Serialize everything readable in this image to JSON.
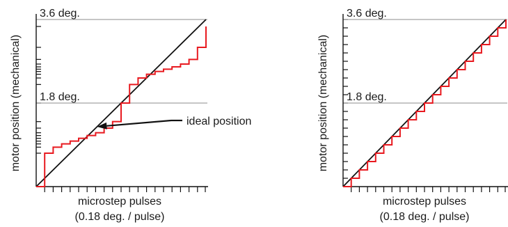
{
  "chart_data": [
    {
      "type": "line",
      "title": "",
      "xlabel": "microstep pulses",
      "xlabel_sub": "(0.18 deg. / pulse)",
      "ylabel": "motor position (mechanical)",
      "ylim_deg": [
        0,
        3.6
      ],
      "reference_lines": [
        {
          "value": 3.6,
          "label": "3.6 deg."
        },
        {
          "value": 1.8,
          "label": "1.8 deg."
        }
      ],
      "series": [
        {
          "role": "ideal",
          "color": "#111111",
          "points": [
            [
              0,
              0
            ],
            [
              20,
              3.6
            ]
          ]
        },
        {
          "role": "actual",
          "color": "#e8191f",
          "step_x": [
            0,
            1,
            2,
            3,
            4,
            5,
            6,
            7,
            8,
            9,
            10,
            11,
            12,
            13,
            14,
            15,
            16,
            17,
            18,
            19,
            20
          ],
          "step_y": [
            0.0,
            0.72,
            0.85,
            0.92,
            0.98,
            1.04,
            1.1,
            1.16,
            1.26,
            1.4,
            1.8,
            2.2,
            2.34,
            2.42,
            2.48,
            2.53,
            2.58,
            2.64,
            2.74,
            3.0,
            3.45
          ]
        }
      ],
      "annotation": {
        "text": "ideal position",
        "target_x": 7.0,
        "target_y": 1.26
      }
    },
    {
      "type": "line",
      "title": "",
      "xlabel": "microstep pulses",
      "xlabel_sub": "(0.18 deg. / pulse)",
      "ylabel": "motor position (mechanical)",
      "ylim_deg": [
        0,
        3.6
      ],
      "reference_lines": [
        {
          "value": 3.6,
          "label": "3.6 deg."
        },
        {
          "value": 1.8,
          "label": "1.8 deg."
        }
      ],
      "series": [
        {
          "role": "ideal",
          "color": "#111111",
          "points": [
            [
              0,
              0
            ],
            [
              20,
              3.6
            ]
          ]
        },
        {
          "role": "actual",
          "color": "#e8191f",
          "step_x": [
            0,
            1,
            2,
            3,
            4,
            5,
            6,
            7,
            8,
            9,
            10,
            11,
            12,
            13,
            14,
            15,
            16,
            17,
            18,
            19,
            20
          ],
          "step_y": [
            0.0,
            0.18,
            0.36,
            0.54,
            0.72,
            0.9,
            1.08,
            1.26,
            1.44,
            1.62,
            1.8,
            1.98,
            2.16,
            2.34,
            2.52,
            2.7,
            2.88,
            3.06,
            3.24,
            3.42,
            3.6
          ]
        }
      ]
    }
  ]
}
